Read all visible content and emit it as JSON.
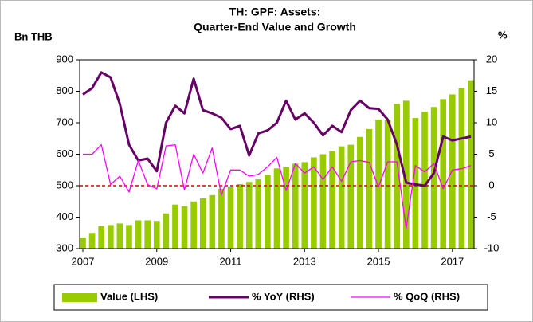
{
  "chart_data": {
    "type": "bar",
    "title": [
      "TH: GPF: Assets:",
      "Quarter-End Value and Growth"
    ],
    "y_label": "Bn THB",
    "y2_label": "%",
    "categories": [
      "2007",
      null,
      null,
      null,
      null,
      null,
      null,
      null,
      "2009",
      null,
      null,
      null,
      null,
      null,
      null,
      null,
      "2011",
      null,
      null,
      null,
      null,
      null,
      null,
      null,
      "2013",
      null,
      null,
      null,
      null,
      null,
      null,
      null,
      "2015",
      null,
      null,
      null,
      null,
      null,
      null,
      null,
      "2017",
      null,
      null
    ],
    "series": [
      {
        "name": "Value (LHS)",
        "type": "bar",
        "color": "#99cc00",
        "values": [
          335,
          350,
          372,
          375,
          380,
          375,
          390,
          390,
          388,
          412,
          440,
          435,
          450,
          460,
          470,
          490,
          495,
          505,
          512,
          520,
          535,
          555,
          560,
          570,
          575,
          590,
          600,
          610,
          625,
          630,
          655,
          680,
          710,
          710,
          760,
          770,
          715,
          735,
          750,
          775,
          790,
          810,
          835
        ]
      },
      {
        "name": "% YoY (RHS)",
        "type": "line",
        "axis": "y2",
        "color": "#660066",
        "values": [
          14.5,
          15.5,
          18,
          17.2,
          13,
          6.5,
          4,
          4.3,
          2.3,
          10,
          12.7,
          11.5,
          17,
          12,
          11.5,
          10.8,
          9,
          9.5,
          4.8,
          8.3,
          8.8,
          10,
          13.5,
          10.5,
          11.5,
          10,
          8,
          9.5,
          8.5,
          12,
          13.5,
          12.3,
          12.2,
          10.5,
          6.5,
          0.5,
          0.2,
          0,
          2,
          7.8,
          7.2,
          7.5,
          7.8
        ]
      },
      {
        "name": "% QoQ (RHS)",
        "type": "line",
        "axis": "y2",
        "color": "#ff00ff",
        "values": [
          5,
          5,
          6.5,
          0.2,
          1.5,
          -1,
          4,
          0.2,
          -0.5,
          6.3,
          6.5,
          -0.7,
          5,
          2,
          6,
          -1.5,
          2.5,
          2.5,
          1.5,
          1.8,
          3,
          4.5,
          -0.8,
          3.5,
          2,
          3,
          1,
          3,
          0.7,
          3.8,
          4,
          3.7,
          -0.2,
          3.8,
          3.8,
          -6.8,
          3.2,
          2.2,
          3.5,
          -0.5,
          2.5,
          2.7,
          3.2
        ]
      }
    ],
    "ylim": [
      300,
      900
    ],
    "yticks": [
      300,
      400,
      500,
      600,
      700,
      800,
      900
    ],
    "y2lim": [
      -10,
      20
    ],
    "y2ticks": [
      -10,
      -5,
      0,
      5,
      10,
      15,
      20
    ],
    "reference_line": {
      "axis": "y2",
      "value": 0,
      "color": "#dd0000"
    },
    "legend": "bottom"
  }
}
